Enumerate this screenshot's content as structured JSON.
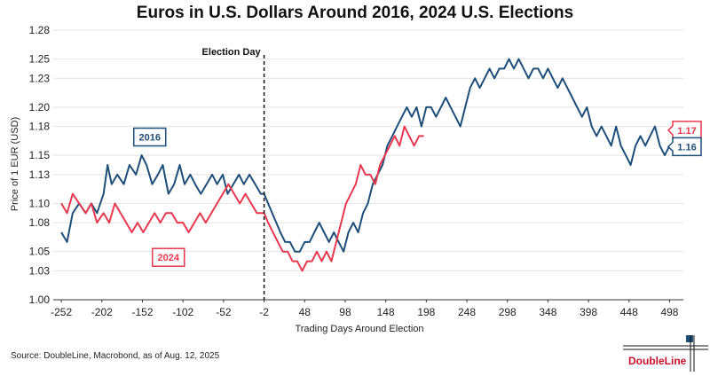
{
  "title": "Euros in U.S. Dollars Around 2016, 2024 U.S. Elections",
  "source": "Source: DoubleLine, Macrobond, as of Aug. 12, 2025",
  "logo_text": "DoubleLine",
  "colors": {
    "series_2016": "#1f4e79",
    "series_2024": "#e8384f",
    "accent": "#c8102e"
  },
  "chart_data": {
    "type": "line",
    "xlabel": "Trading Days Around Election",
    "ylabel": "Price of 1 EUR (USD)",
    "xlim": [
      -262,
      515
    ],
    "ylim": [
      1.0,
      1.28
    ],
    "x_ticks": [
      -252,
      -202,
      -152,
      -102,
      -52,
      -2,
      48,
      98,
      148,
      198,
      248,
      298,
      348,
      398,
      448,
      498
    ],
    "y_ticks": [
      1.0,
      1.03,
      1.05,
      1.08,
      1.1,
      1.13,
      1.15,
      1.18,
      1.2,
      1.23,
      1.25,
      1.28
    ],
    "annotations": [
      {
        "label": "Election Day",
        "x": -2
      }
    ],
    "series": [
      {
        "name": "2016",
        "end_label": "1.16",
        "color": "#1f4e79",
        "points": [
          [
            -252,
            1.07
          ],
          [
            -245,
            1.06
          ],
          [
            -238,
            1.09
          ],
          [
            -230,
            1.1
          ],
          [
            -222,
            1.09
          ],
          [
            -215,
            1.1
          ],
          [
            -208,
            1.09
          ],
          [
            -200,
            1.11
          ],
          [
            -195,
            1.14
          ],
          [
            -190,
            1.12
          ],
          [
            -183,
            1.13
          ],
          [
            -175,
            1.12
          ],
          [
            -168,
            1.14
          ],
          [
            -160,
            1.13
          ],
          [
            -153,
            1.15
          ],
          [
            -147,
            1.14
          ],
          [
            -140,
            1.12
          ],
          [
            -133,
            1.13
          ],
          [
            -127,
            1.14
          ],
          [
            -120,
            1.11
          ],
          [
            -113,
            1.12
          ],
          [
            -106,
            1.14
          ],
          [
            -100,
            1.12
          ],
          [
            -93,
            1.13
          ],
          [
            -87,
            1.12
          ],
          [
            -80,
            1.11
          ],
          [
            -73,
            1.12
          ],
          [
            -66,
            1.13
          ],
          [
            -60,
            1.12
          ],
          [
            -53,
            1.13
          ],
          [
            -47,
            1.11
          ],
          [
            -40,
            1.12
          ],
          [
            -33,
            1.13
          ],
          [
            -27,
            1.12
          ],
          [
            -20,
            1.13
          ],
          [
            -13,
            1.12
          ],
          [
            -6,
            1.11
          ],
          [
            -2,
            1.11
          ],
          [
            3,
            1.1
          ],
          [
            8,
            1.09
          ],
          [
            13,
            1.08
          ],
          [
            18,
            1.07
          ],
          [
            24,
            1.06
          ],
          [
            30,
            1.06
          ],
          [
            36,
            1.05
          ],
          [
            42,
            1.05
          ],
          [
            48,
            1.06
          ],
          [
            54,
            1.06
          ],
          [
            60,
            1.07
          ],
          [
            66,
            1.08
          ],
          [
            72,
            1.07
          ],
          [
            78,
            1.06
          ],
          [
            84,
            1.07
          ],
          [
            90,
            1.06
          ],
          [
            96,
            1.05
          ],
          [
            102,
            1.07
          ],
          [
            108,
            1.08
          ],
          [
            114,
            1.07
          ],
          [
            120,
            1.09
          ],
          [
            126,
            1.1
          ],
          [
            132,
            1.12
          ],
          [
            138,
            1.13
          ],
          [
            144,
            1.14
          ],
          [
            150,
            1.16
          ],
          [
            156,
            1.17
          ],
          [
            162,
            1.18
          ],
          [
            168,
            1.19
          ],
          [
            174,
            1.2
          ],
          [
            180,
            1.19
          ],
          [
            186,
            1.2
          ],
          [
            192,
            1.18
          ],
          [
            198,
            1.2
          ],
          [
            204,
            1.2
          ],
          [
            210,
            1.19
          ],
          [
            216,
            1.2
          ],
          [
            222,
            1.21
          ],
          [
            228,
            1.2
          ],
          [
            234,
            1.19
          ],
          [
            240,
            1.18
          ],
          [
            246,
            1.2
          ],
          [
            252,
            1.22
          ],
          [
            258,
            1.23
          ],
          [
            264,
            1.22
          ],
          [
            270,
            1.23
          ],
          [
            276,
            1.24
          ],
          [
            282,
            1.23
          ],
          [
            288,
            1.24
          ],
          [
            294,
            1.24
          ],
          [
            300,
            1.25
          ],
          [
            306,
            1.24
          ],
          [
            312,
            1.25
          ],
          [
            318,
            1.24
          ],
          [
            324,
            1.23
          ],
          [
            330,
            1.24
          ],
          [
            336,
            1.24
          ],
          [
            342,
            1.23
          ],
          [
            348,
            1.24
          ],
          [
            354,
            1.23
          ],
          [
            360,
            1.22
          ],
          [
            366,
            1.23
          ],
          [
            372,
            1.22
          ],
          [
            378,
            1.21
          ],
          [
            384,
            1.2
          ],
          [
            390,
            1.19
          ],
          [
            396,
            1.2
          ],
          [
            402,
            1.18
          ],
          [
            408,
            1.17
          ],
          [
            414,
            1.18
          ],
          [
            420,
            1.17
          ],
          [
            426,
            1.16
          ],
          [
            432,
            1.18
          ],
          [
            438,
            1.16
          ],
          [
            444,
            1.15
          ],
          [
            450,
            1.14
          ],
          [
            456,
            1.16
          ],
          [
            462,
            1.17
          ],
          [
            468,
            1.16
          ],
          [
            474,
            1.17
          ],
          [
            480,
            1.18
          ],
          [
            486,
            1.16
          ],
          [
            492,
            1.15
          ],
          [
            498,
            1.16
          ]
        ]
      },
      {
        "name": "2024",
        "end_label": "1.17",
        "color": "#e8384f",
        "points": [
          [
            -252,
            1.1
          ],
          [
            -245,
            1.09
          ],
          [
            -238,
            1.11
          ],
          [
            -230,
            1.1
          ],
          [
            -222,
            1.09
          ],
          [
            -215,
            1.1
          ],
          [
            -208,
            1.08
          ],
          [
            -200,
            1.09
          ],
          [
            -193,
            1.08
          ],
          [
            -186,
            1.1
          ],
          [
            -179,
            1.09
          ],
          [
            -172,
            1.08
          ],
          [
            -165,
            1.07
          ],
          [
            -158,
            1.08
          ],
          [
            -151,
            1.07
          ],
          [
            -144,
            1.08
          ],
          [
            -137,
            1.09
          ],
          [
            -130,
            1.08
          ],
          [
            -123,
            1.09
          ],
          [
            -116,
            1.09
          ],
          [
            -109,
            1.08
          ],
          [
            -102,
            1.08
          ],
          [
            -95,
            1.07
          ],
          [
            -88,
            1.08
          ],
          [
            -81,
            1.09
          ],
          [
            -74,
            1.08
          ],
          [
            -67,
            1.09
          ],
          [
            -60,
            1.1
          ],
          [
            -53,
            1.11
          ],
          [
            -46,
            1.12
          ],
          [
            -39,
            1.11
          ],
          [
            -32,
            1.1
          ],
          [
            -25,
            1.11
          ],
          [
            -18,
            1.1
          ],
          [
            -11,
            1.09
          ],
          [
            -5,
            1.09
          ],
          [
            -2,
            1.09
          ],
          [
            3,
            1.08
          ],
          [
            9,
            1.07
          ],
          [
            15,
            1.06
          ],
          [
            21,
            1.05
          ],
          [
            27,
            1.05
          ],
          [
            33,
            1.04
          ],
          [
            39,
            1.04
          ],
          [
            45,
            1.03
          ],
          [
            51,
            1.04
          ],
          [
            57,
            1.04
          ],
          [
            63,
            1.05
          ],
          [
            69,
            1.04
          ],
          [
            75,
            1.05
          ],
          [
            81,
            1.04
          ],
          [
            87,
            1.06
          ],
          [
            93,
            1.08
          ],
          [
            99,
            1.1
          ],
          [
            105,
            1.11
          ],
          [
            111,
            1.12
          ],
          [
            117,
            1.14
          ],
          [
            123,
            1.13
          ],
          [
            129,
            1.13
          ],
          [
            135,
            1.12
          ],
          [
            141,
            1.14
          ],
          [
            147,
            1.15
          ],
          [
            153,
            1.16
          ],
          [
            159,
            1.17
          ],
          [
            165,
            1.16
          ],
          [
            171,
            1.18
          ],
          [
            177,
            1.17
          ],
          [
            183,
            1.16
          ],
          [
            189,
            1.17
          ],
          [
            195,
            1.17
          ]
        ]
      }
    ]
  }
}
